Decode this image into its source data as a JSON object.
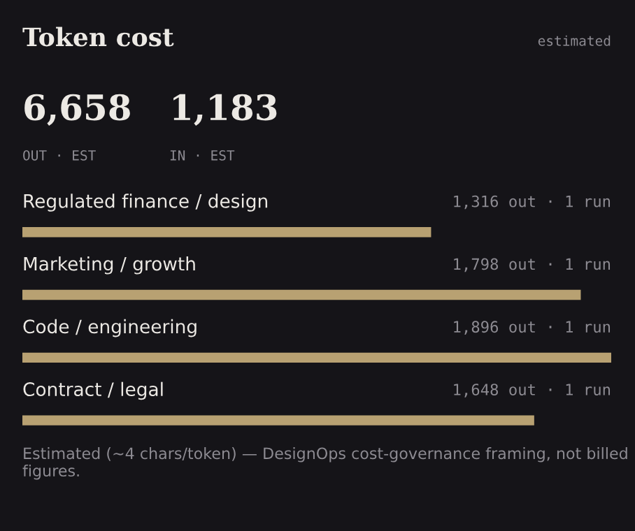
{
  "chart_data": {
    "type": "bar",
    "orientation": "horizontal",
    "title": "Token cost",
    "categories": [
      "Regulated finance / design",
      "Marketing / growth",
      "Code / engineering",
      "Contract / legal"
    ],
    "values": [
      1316,
      1798,
      1896,
      1648
    ],
    "value_labels": [
      "1,316 out · 1 run",
      "1,798 out · 1 run",
      "1,896 out · 1 run",
      "1,648 out · 1 run"
    ],
    "color": "#b8a172",
    "xlim": [
      0,
      1896
    ],
    "annotations": [
      "estimated",
      "6,658",
      "OUT · EST",
      "1,183",
      "IN · EST",
      "Estimated (~4 chars/token) — DesignOps cost-governance framing, not billed figures."
    ]
  }
}
